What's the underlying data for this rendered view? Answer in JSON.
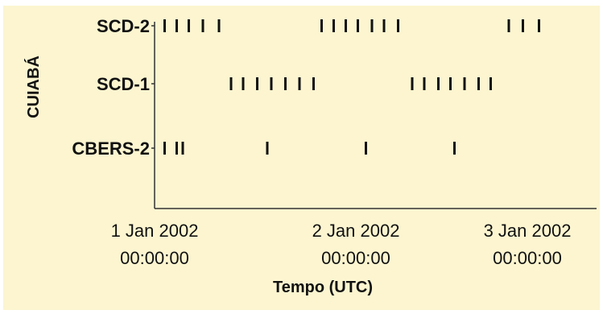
{
  "chart_data": {
    "type": "scatter",
    "ylabel": "CUIABÁ",
    "xlabel": "Tempo (UTC)",
    "x_unit": "day",
    "x_range": [
      0.0,
      2.05
    ],
    "x_ticks": [
      {
        "x": 0,
        "line1": "1 Jan 2002",
        "line2": "00:00:00"
      },
      {
        "x": 1,
        "line1": "2 Jan 2002",
        "line2": "00:00:00"
      },
      {
        "x": 2,
        "line1": "3 Jan 2002",
        "line2": "00:00:00"
      }
    ],
    "series": [
      {
        "name": "SCD-2",
        "passes": [
          0.05,
          0.11,
          0.17,
          0.24,
          0.32,
          0.83,
          0.89,
          0.95,
          1.01,
          1.08,
          1.14,
          1.21,
          1.76,
          1.83,
          1.91
        ]
      },
      {
        "name": "SCD-1",
        "passes": [
          0.38,
          0.44,
          0.51,
          0.58,
          0.65,
          0.72,
          0.79,
          1.28,
          1.34,
          1.41,
          1.47,
          1.54,
          1.61,
          1.67
        ]
      },
      {
        "name": "CBERS-2",
        "passes": [
          0.05,
          0.11,
          0.14,
          0.56,
          1.05,
          1.49
        ]
      }
    ]
  }
}
